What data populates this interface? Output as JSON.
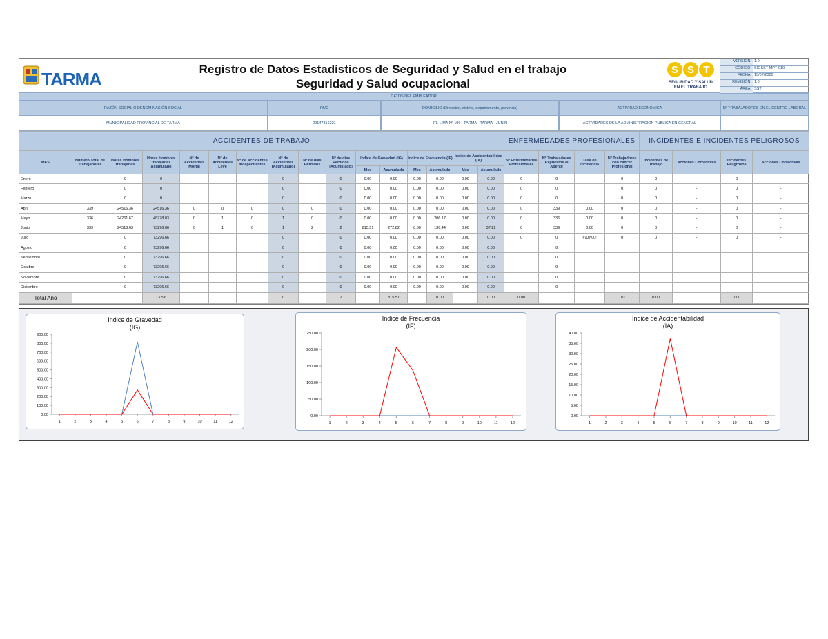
{
  "header": {
    "logo_text": "TARMA",
    "title": "Registro de Datos Estadísticos de Seguridad y Salud en el trabajo",
    "subtitle": "Seguridad y Salud ocupacional",
    "sst_letters": [
      "S",
      "S",
      "T"
    ],
    "sst_caption": [
      "SEGURIDAD Y SALUD",
      "EN EL TRABAJO"
    ],
    "doc_info": [
      {
        "label": "VERSIÓN:",
        "value": "1.0"
      },
      {
        "label": "CÓDIGO:",
        "value": "SIGSST-MPT-010"
      },
      {
        "label": "FECHA:",
        "value": "15/07/2020"
      },
      {
        "label": "REVISIÓN:",
        "value": "1.0"
      },
      {
        "label": "ÁREA:",
        "value": "SST"
      }
    ]
  },
  "employer": {
    "section_title": "DATOS DEL EMPLEADOR",
    "labels": [
      "RAZÓN SOCIAL O DENOMINACIÓN SOCIAL",
      "RUC",
      "DOMICILIO (Dirección, distrito, departamento, provincia)",
      "ACTIVIDAD ECONÓMICA",
      "Nº TRABAJADORES EN EL CENTRO LABORAL"
    ],
    "values": [
      "MUNICIPALIDAD PROVINCIAL DE TARMA",
      "20147816221",
      "JR. LIMA Nº 199 - TARMA - TARMA - JUNIN",
      "ACTIVIDADES DE LA ADMINISTRACION PUBLICA EN GENERAL"
    ]
  },
  "table": {
    "groups": [
      "ACCIDENTES DE TRABAJO",
      "ENFERMEDADES PROFESIONALES",
      "INCIDENTES E INCIDENTES PELIGROSOS"
    ],
    "columns": [
      "MES",
      "Número Total de Trabajadores",
      "Horas Hombres trabajadas",
      "Horas Hombres trabajadas (Acumulado)",
      "Nº de Accidentes Mortal",
      "Nº de Accidentes Leve",
      "Nº de Accidentes Incapacitantes",
      "Nº de Accidentes (Acumulado)",
      "Nº de días Perdidos",
      "Nº de días Perdidos (Acumulado)",
      "Indice de Gravedad (IG)",
      "Indice de Frecuencia (IF)",
      "Indice de Accidentabilidad (IA)",
      "Nº Enfermedades Profesionales",
      "Nº Trabajadores Expuestos al Agente",
      "Tasa de Incidencia",
      "Nº Trabajadores con cáncer Profesional",
      "Incidentes de Trabajo",
      "Acciones Correctivas",
      "Incidentes Peligrosos",
      "Acciones Correctivas"
    ],
    "sub_headers": [
      "Mes",
      "Acumulado",
      "Mes",
      "Acumulado",
      "Mes",
      "Acumulado"
    ],
    "rows": [
      [
        "Enero",
        null,
        "0",
        "0",
        null,
        null,
        null,
        "0",
        null,
        "0",
        "0.00",
        "0.00",
        "0.00",
        "0.00",
        "0.00",
        "0.00",
        "0",
        "0",
        null,
        "0",
        "0",
        "-",
        "0",
        "-"
      ],
      [
        "Febrero",
        null,
        "0",
        "0",
        null,
        null,
        null,
        "0",
        null,
        "0",
        "0.00",
        "0.00",
        "0.00",
        "0.00",
        "0.00",
        "0.00",
        "0",
        "0",
        null,
        "0",
        "0",
        "-",
        "0",
        "-"
      ],
      [
        "Marzo",
        null,
        "0",
        "0",
        null,
        null,
        null,
        "0",
        null,
        "0",
        "0.00",
        "0.00",
        "0.00",
        "0.00",
        "0.00",
        "0.00",
        "0",
        "0",
        null,
        "0",
        "0",
        "-",
        "0",
        "-"
      ],
      [
        "Abril",
        "339",
        "24516.36",
        "24516.36",
        "0",
        "0",
        "0",
        "0",
        "0",
        "0",
        "0.00",
        "0.00",
        "0.00",
        "0.00",
        "0.00",
        "0.00",
        "0",
        "339",
        "0.00",
        "0",
        "0",
        "-",
        "0",
        "-"
      ],
      [
        "Mayo",
        "336",
        "24261.67",
        "48778.03",
        "0",
        "1",
        "0",
        "1",
        "0",
        "0",
        "0.00",
        "0.00",
        "0.00",
        "206.17",
        "0.00",
        "0.00",
        "0",
        "336",
        "0.00",
        "0",
        "0",
        "-",
        "0",
        "-"
      ],
      [
        "Junio",
        "339",
        "24518.63",
        "73296.66",
        "0",
        "1",
        "0",
        "1",
        "2",
        "2",
        "815.51",
        "272.82",
        "0.00",
        "136.44",
        "0.00",
        "37.22",
        "0",
        "339",
        "0.00",
        "0",
        "0",
        "-",
        "0",
        "-"
      ],
      [
        "Julio",
        null,
        "0",
        "73296.66",
        null,
        null,
        null,
        "0",
        null,
        "0",
        "0.00",
        "0.00",
        "0.00",
        "0.00",
        "0.00",
        "0.00",
        "0",
        "0",
        "#¡DIV/0!",
        "0",
        "0",
        "-",
        "0",
        "-"
      ],
      [
        "Agosto",
        null,
        "0",
        "73296.66",
        null,
        null,
        null,
        "0",
        null,
        "0",
        "0.00",
        "0.00",
        "0.00",
        "0.00",
        "0.00",
        "0.00",
        null,
        "0",
        null,
        null,
        null,
        null,
        null,
        null
      ],
      [
        "Septiembre",
        null,
        "0",
        "73296.66",
        null,
        null,
        null,
        "0",
        null,
        "0",
        "0.00",
        "0.00",
        "0.00",
        "0.00",
        "0.00",
        "0.00",
        null,
        "0",
        null,
        null,
        null,
        null,
        null,
        null
      ],
      [
        "Octubre",
        null,
        "0",
        "73296.66",
        null,
        null,
        null,
        "0",
        null,
        "0",
        "0.00",
        "0.00",
        "0.00",
        "0.00",
        "0.00",
        "0.00",
        null,
        "0",
        null,
        null,
        null,
        null,
        null,
        null
      ],
      [
        "Noviembre",
        null,
        "0",
        "73296.66",
        null,
        null,
        null,
        "0",
        null,
        "0",
        "0.00",
        "0.00",
        "0.00",
        "0.00",
        "0.00",
        "0.00",
        null,
        "0",
        null,
        null,
        null,
        null,
        null,
        null
      ],
      [
        "Diciembre",
        null,
        "0",
        "73296.66",
        null,
        null,
        null,
        "0",
        null,
        "0",
        "0.00",
        "0.00",
        "0.00",
        "0.00",
        "0.00",
        "0.00",
        null,
        "0",
        null,
        null,
        null,
        null,
        null,
        null
      ]
    ],
    "total": [
      "Total Año",
      null,
      null,
      "73296",
      null,
      null,
      null,
      "0",
      null,
      "2",
      null,
      "815.51",
      null,
      "0.00",
      null,
      "0.00",
      "0.00",
      null,
      null,
      "0.0",
      "0.00",
      null,
      "0.00",
      null
    ]
  },
  "chart_data": [
    {
      "type": "line",
      "title": "Indice de Gravedad",
      "subtitle": "(IG)",
      "x": [
        1,
        2,
        3,
        4,
        5,
        6,
        7,
        8,
        9,
        10,
        11,
        12
      ],
      "xlim": [
        0.5,
        12.5
      ],
      "xticks": [
        1,
        2,
        3,
        4,
        5,
        6,
        7,
        8,
        9,
        10,
        11,
        12
      ],
      "ylim": [
        0,
        900
      ],
      "yticks": [
        {
          "value": 0,
          "label": "0.00"
        },
        {
          "value": 100,
          "label": "100.00"
        },
        {
          "value": 200,
          "label": "200.00"
        },
        {
          "value": 300,
          "label": "300.00"
        },
        {
          "value": 400,
          "label": "400.00"
        },
        {
          "value": 500,
          "label": "500.00"
        },
        {
          "value": 600,
          "label": "600.00"
        },
        {
          "value": 700,
          "label": "700.00"
        },
        {
          "value": 800,
          "label": "800.00"
        },
        {
          "value": 900,
          "label": "900.00"
        }
      ],
      "series": [
        {
          "color": "#4f81bd",
          "values": [
            0,
            0,
            0,
            0,
            0,
            815.51,
            0,
            0,
            0,
            0,
            0,
            0
          ]
        },
        {
          "color": "#ff0000",
          "values": [
            0,
            0,
            0,
            0,
            0,
            272.82,
            0,
            0,
            0,
            0,
            0,
            0
          ]
        }
      ]
    },
    {
      "type": "line",
      "title": "Indice de Frecuencia",
      "subtitle": "(IF)",
      "x": [
        1,
        2,
        3,
        4,
        5,
        6,
        7,
        8,
        9,
        10,
        11,
        12
      ],
      "xlim": [
        0.5,
        12.5
      ],
      "xticks": [
        1,
        2,
        3,
        4,
        5,
        6,
        7,
        8,
        9,
        10,
        11,
        12
      ],
      "ylim": [
        0,
        250
      ],
      "yticks": [
        {
          "value": 0,
          "label": "0.00"
        },
        {
          "value": 50,
          "label": "50.00"
        },
        {
          "value": 100,
          "label": "100.00"
        },
        {
          "value": 150,
          "label": "150.00"
        },
        {
          "value": 200,
          "label": "200.00"
        },
        {
          "value": 250,
          "label": "250.00"
        }
      ],
      "series": [
        {
          "color": "#4f81bd",
          "values": [
            0,
            0,
            0,
            0,
            0,
            0,
            0,
            0,
            0,
            0,
            0,
            0
          ]
        },
        {
          "color": "#ff0000",
          "values": [
            0,
            0,
            0,
            0,
            206.17,
            136.44,
            0,
            0,
            0,
            0,
            0,
            0
          ]
        }
      ]
    },
    {
      "type": "line",
      "title": "Indice de Accidentabilidad",
      "subtitle": "(IA)",
      "x": [
        1,
        2,
        3,
        4,
        5,
        6,
        7,
        8,
        9,
        10,
        11,
        12
      ],
      "xlim": [
        0.5,
        12.5
      ],
      "xticks": [
        1,
        2,
        3,
        4,
        5,
        6,
        7,
        8,
        9,
        10,
        11,
        12
      ],
      "ylim": [
        0,
        40
      ],
      "yticks": [
        {
          "value": 0,
          "label": "0.00"
        },
        {
          "value": 5,
          "label": "5.00"
        },
        {
          "value": 10,
          "label": "10.00"
        },
        {
          "value": 15,
          "label": "15.00"
        },
        {
          "value": 20,
          "label": "20.00"
        },
        {
          "value": 25,
          "label": "25.00"
        },
        {
          "value": 30,
          "label": "30.00"
        },
        {
          "value": 35,
          "label": "35.00"
        },
        {
          "value": 40,
          "label": "40.00"
        }
      ],
      "series": [
        {
          "color": "#4f81bd",
          "values": [
            0,
            0,
            0,
            0,
            0,
            0,
            0,
            0,
            0,
            0,
            0,
            0
          ]
        },
        {
          "color": "#ff0000",
          "values": [
            0,
            0,
            0,
            0,
            0,
            37.22,
            0,
            0,
            0,
            0,
            0,
            0
          ]
        }
      ]
    }
  ]
}
